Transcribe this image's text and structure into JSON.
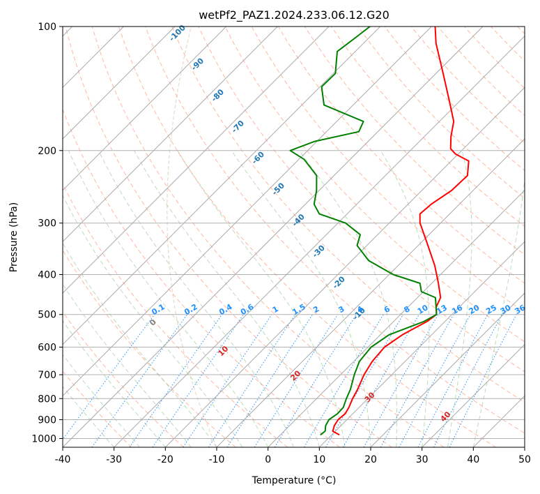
{
  "chart_data": {
    "type": "line",
    "title": "wetPf2_PAZ1.2024.233.06.12.G20",
    "xlabel": "Temperature (°C)",
    "ylabel": "Pressure (hPa)",
    "xlim": [
      -40,
      50
    ],
    "ylim": [
      1050,
      100
    ],
    "y_scale": "log",
    "x_ticks": [
      -40,
      -30,
      -20,
      -10,
      0,
      10,
      20,
      30,
      40,
      50
    ],
    "y_ticks": [
      100,
      200,
      300,
      400,
      500,
      600,
      700,
      800,
      900,
      1000
    ],
    "grid": true,
    "skew": "temperature isotherms skewed 45°",
    "series": [
      {
        "role": "temperature",
        "color": "#ff0000",
        "points": [
          {
            "p": 980,
            "t": 11.5
          },
          {
            "p": 960,
            "t": 9.5
          },
          {
            "p": 930,
            "t": 8.7
          },
          {
            "p": 900,
            "t": 8.3
          },
          {
            "p": 870,
            "t": 8.5
          },
          {
            "p": 840,
            "t": 8.0
          },
          {
            "p": 800,
            "t": 7.0
          },
          {
            "p": 760,
            "t": 6.2
          },
          {
            "p": 700,
            "t": 4.6
          },
          {
            "p": 650,
            "t": 3.6
          },
          {
            "p": 600,
            "t": 3.2
          },
          {
            "p": 560,
            "t": 4.3
          },
          {
            "p": 520,
            "t": 6.5
          },
          {
            "p": 500,
            "t": 7.0
          },
          {
            "p": 480,
            "t": 5.5
          },
          {
            "p": 455,
            "t": 4.5
          },
          {
            "p": 420,
            "t": 1.3
          },
          {
            "p": 380,
            "t": -2.9
          },
          {
            "p": 330,
            "t": -9.5
          },
          {
            "p": 300,
            "t": -14.0
          },
          {
            "p": 285,
            "t": -15.8
          },
          {
            "p": 270,
            "t": -15.5
          },
          {
            "p": 250,
            "t": -14.2
          },
          {
            "p": 230,
            "t": -14.0
          },
          {
            "p": 212,
            "t": -16.6
          },
          {
            "p": 204,
            "t": -20.5
          },
          {
            "p": 198,
            "t": -22.5
          },
          {
            "p": 185,
            "t": -24.8
          },
          {
            "p": 170,
            "t": -27.2
          },
          {
            "p": 150,
            "t": -32.5
          },
          {
            "p": 130,
            "t": -38.6
          },
          {
            "p": 110,
            "t": -45.8
          },
          {
            "p": 100,
            "t": -49.3
          }
        ]
      },
      {
        "role": "dewpoint",
        "color": "#008000",
        "points": [
          {
            "p": 980,
            "t": 7.8
          },
          {
            "p": 960,
            "t": 8.0
          },
          {
            "p": 930,
            "t": 7.0
          },
          {
            "p": 900,
            "t": 6.5
          },
          {
            "p": 870,
            "t": 7.0
          },
          {
            "p": 840,
            "t": 6.9
          },
          {
            "p": 800,
            "t": 5.8
          },
          {
            "p": 760,
            "t": 4.8
          },
          {
            "p": 700,
            "t": 2.7
          },
          {
            "p": 650,
            "t": 1.1
          },
          {
            "p": 600,
            "t": 0.6
          },
          {
            "p": 560,
            "t": 1.7
          },
          {
            "p": 520,
            "t": 5.9
          },
          {
            "p": 500,
            "t": 7.0
          },
          {
            "p": 480,
            "t": 5.5
          },
          {
            "p": 455,
            "t": 3.5
          },
          {
            "p": 440,
            "t": -0.4
          },
          {
            "p": 420,
            "t": -2.3
          },
          {
            "p": 400,
            "t": -9.2
          },
          {
            "p": 370,
            "t": -16.7
          },
          {
            "p": 340,
            "t": -21.9
          },
          {
            "p": 320,
            "t": -23.4
          },
          {
            "p": 300,
            "t": -28.5
          },
          {
            "p": 285,
            "t": -35.4
          },
          {
            "p": 270,
            "t": -38.3
          },
          {
            "p": 250,
            "t": -40.5
          },
          {
            "p": 230,
            "t": -43.4
          },
          {
            "p": 210,
            "t": -49.0
          },
          {
            "p": 200,
            "t": -53.4
          },
          {
            "p": 190,
            "t": -50.4
          },
          {
            "p": 180,
            "t": -43.7
          },
          {
            "p": 170,
            "t": -44.8
          },
          {
            "p": 155,
            "t": -55.7
          },
          {
            "p": 140,
            "t": -59.7
          },
          {
            "p": 130,
            "t": -59.6
          },
          {
            "p": 115,
            "t": -63.5
          },
          {
            "p": 105,
            "t": -62.5
          },
          {
            "p": 100,
            "t": -62.0
          }
        ]
      }
    ],
    "annotations": {
      "isotherm_labels": [
        "-100",
        "-90",
        "-80",
        "-70",
        "-60",
        "-50",
        "-40",
        "-30",
        "-20",
        "-10"
      ],
      "mixing_ratio_labels": [
        "0.1",
        "0.2",
        "0.4",
        "0.6",
        "1",
        "1.5",
        "2",
        "3",
        "4",
        "6",
        "8",
        "10",
        "13",
        "16",
        "20",
        "25",
        "30",
        "36"
      ],
      "red_labels": [
        "0",
        "10",
        "20",
        "30",
        "40"
      ]
    },
    "colors": {
      "isotherm_label": "#1f77b4",
      "mixing_ratio": "#1e90ff",
      "red_label": "#d62728",
      "dry_adiabat": "#ff9f80",
      "moist_adiabat": "#80c080",
      "tan_curve": "#d2b48c"
    }
  }
}
